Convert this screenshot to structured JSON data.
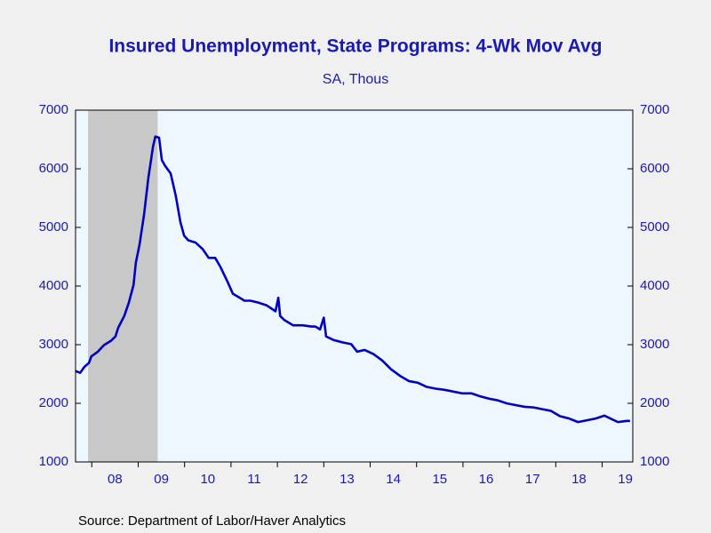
{
  "chart_data": {
    "type": "line",
    "title": "Insured Unemployment, State Programs: 4-Wk Mov Avg",
    "subtitle": "SA, Thous",
    "source": "Source:  Department of Labor/Haver Analytics",
    "recession": [
      2007.92,
      2009.42
    ],
    "xlim": [
      2007.65,
      2019.66
    ],
    "xticks": [
      {
        "value": 2008.5,
        "label": "08"
      },
      {
        "value": 2009.5,
        "label": "09"
      },
      {
        "value": 2010.5,
        "label": "10"
      },
      {
        "value": 2011.5,
        "label": "11"
      },
      {
        "value": 2012.5,
        "label": "12"
      },
      {
        "value": 2013.5,
        "label": "13"
      },
      {
        "value": 2014.5,
        "label": "14"
      },
      {
        "value": 2015.5,
        "label": "15"
      },
      {
        "value": 2016.5,
        "label": "16"
      },
      {
        "value": 2017.5,
        "label": "17"
      },
      {
        "value": 2018.5,
        "label": "18"
      },
      {
        "value": 2019.5,
        "label": "19"
      }
    ],
    "ylim": [
      1000,
      7000
    ],
    "yticks": [
      1000,
      2000,
      3000,
      4000,
      5000,
      6000,
      7000
    ],
    "y2lim": [
      1000,
      7000
    ],
    "y2ticks": [
      1000,
      2000,
      3000,
      4000,
      5000,
      6000,
      7000
    ],
    "x": [
      2007.65,
      2007.75,
      2007.84,
      2007.94,
      2007.99,
      2008.13,
      2008.26,
      2008.42,
      2008.51,
      2008.57,
      2008.7,
      2008.8,
      2008.9,
      2008.95,
      2009.03,
      2009.13,
      2009.22,
      2009.32,
      2009.37,
      2009.45,
      2009.51,
      2009.58,
      2009.7,
      2009.81,
      2009.91,
      2009.99,
      2010.08,
      2010.24,
      2010.39,
      2010.52,
      2010.66,
      2010.77,
      2010.91,
      2011.04,
      2011.19,
      2011.29,
      2011.42,
      2011.58,
      2011.77,
      2011.96,
      2012.02,
      2012.06,
      2012.15,
      2012.34,
      2012.54,
      2012.73,
      2012.82,
      2012.92,
      2013.0,
      2013.05,
      2013.21,
      2013.4,
      2013.59,
      2013.72,
      2013.88,
      2014.07,
      2014.26,
      2014.45,
      2014.64,
      2014.83,
      2015.03,
      2015.22,
      2015.41,
      2015.6,
      2015.79,
      2015.98,
      2016.18,
      2016.37,
      2016.56,
      2016.75,
      2016.94,
      2017.13,
      2017.33,
      2017.52,
      2017.71,
      2017.9,
      2018.09,
      2018.29,
      2018.48,
      2018.67,
      2018.86,
      2019.05,
      2019.18,
      2019.34,
      2019.53,
      2019.6
    ],
    "series": [
      {
        "name": "Insured Unemployment",
        "color": "#0000c0",
        "values": [
          2550,
          2520,
          2620,
          2690,
          2800,
          2880,
          2990,
          3070,
          3140,
          3290,
          3490,
          3720,
          4020,
          4400,
          4710,
          5240,
          5850,
          6380,
          6550,
          6530,
          6150,
          6050,
          5920,
          5540,
          5090,
          4860,
          4780,
          4740,
          4630,
          4480,
          4480,
          4330,
          4100,
          3870,
          3800,
          3750,
          3750,
          3720,
          3670,
          3570,
          3800,
          3490,
          3420,
          3330,
          3330,
          3310,
          3310,
          3260,
          3460,
          3140,
          3080,
          3040,
          3010,
          2880,
          2910,
          2840,
          2730,
          2580,
          2470,
          2380,
          2350,
          2280,
          2250,
          2230,
          2200,
          2170,
          2170,
          2120,
          2080,
          2050,
          2000,
          1970,
          1940,
          1930,
          1900,
          1870,
          1780,
          1740,
          1680,
          1710,
          1740,
          1790,
          1740,
          1680,
          1700,
          1700
        ]
      }
    ]
  }
}
